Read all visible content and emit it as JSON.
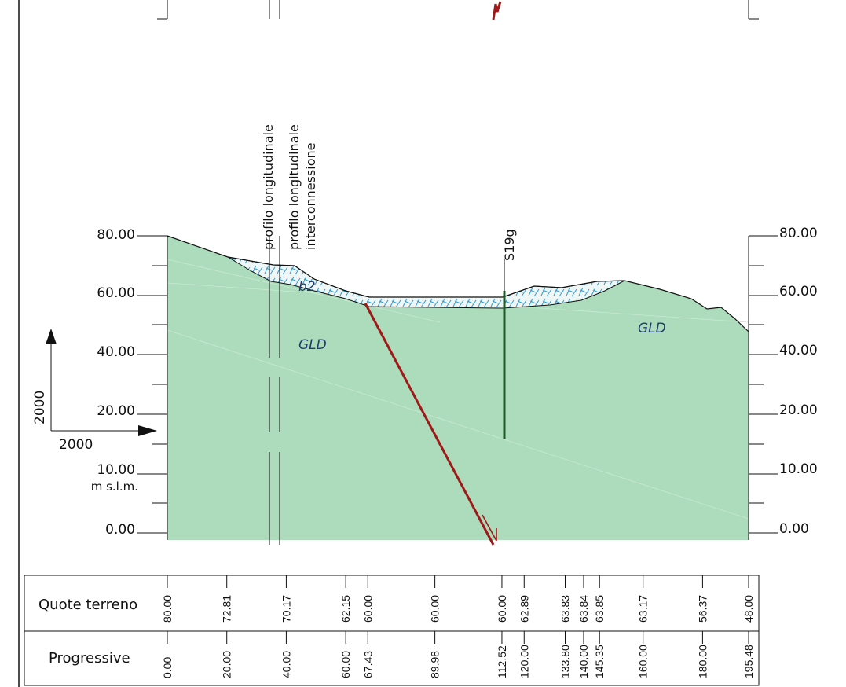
{
  "diagram": {
    "colors": {
      "ground": "#acdcbb",
      "alluvium_fill": "#eef7f5",
      "alluvium_hatch": "#2e9ad6",
      "fault": "#a01818",
      "borehole": "#1d5a26",
      "line": "#111111",
      "geo_label": "#1f3a6e"
    },
    "elevation_axis": {
      "labels_left": [
        "80.00",
        "60.00",
        "40.00",
        "20.00",
        "10.00",
        "0.00"
      ],
      "labels_right": [
        "80.00",
        "60.00",
        "40.00",
        "20.00",
        "10.00",
        "0.00"
      ],
      "unit": "m s.l.m."
    },
    "scale": {
      "vertical": "2000",
      "horizontal": "2000"
    },
    "section_markers": [
      {
        "label": "profilo longitudinale"
      },
      {
        "label": "profilo longitudinale interconnessione",
        "line1": "profilo longitudinale",
        "line2": "interconnessione"
      }
    ],
    "borehole": {
      "label": "S19g"
    },
    "geology": {
      "alluvium": "b2",
      "bedrock_left": "GLD",
      "bedrock_right": "GLD"
    },
    "table": {
      "rows": [
        {
          "label": "Quote terreno"
        },
        {
          "label": "Progressive"
        }
      ],
      "stations": [
        {
          "quota": "80.00",
          "progressiva": "0.00"
        },
        {
          "quota": "72.81",
          "progressiva": "20.00"
        },
        {
          "quota": "70.17",
          "progressiva": "40.00"
        },
        {
          "quota": "62.15",
          "progressiva": "60.00"
        },
        {
          "quota": "60.00",
          "progressiva": "67.43"
        },
        {
          "quota": "60.00",
          "progressiva": "89.98"
        },
        {
          "quota": "60.00",
          "progressiva": "112.52"
        },
        {
          "quota": "62.89",
          "progressiva": "120.00"
        },
        {
          "quota": "63.83",
          "progressiva": "133.80"
        },
        {
          "quota": "63.84",
          "progressiva": "140.00"
        },
        {
          "quota": "63.85",
          "progressiva": "145.35"
        },
        {
          "quota": "63.17",
          "progressiva": "160.00"
        },
        {
          "quota": "56.37",
          "progressiva": "180.00"
        },
        {
          "quota": "48.00",
          "progressiva": "195.48"
        }
      ]
    }
  }
}
